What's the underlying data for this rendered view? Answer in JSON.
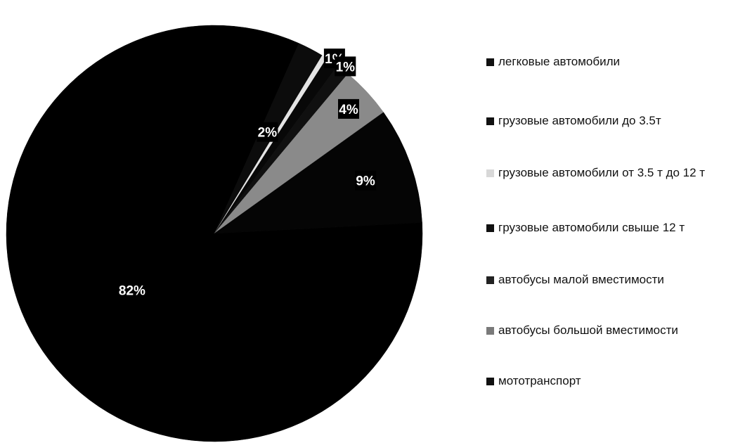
{
  "chart_data": {
    "type": "pie",
    "title": "",
    "legend_position": "right",
    "slices": [
      {
        "label": "легковые автомобили",
        "value": 82,
        "value_label": "82%",
        "color": "#000000",
        "label_color": "#ffffff"
      },
      {
        "label": "грузовые автомобили до 3.5т",
        "value": 2,
        "value_label": "2%",
        "color": "#0c0c0c",
        "label_color": "#ffffff"
      },
      {
        "label": "грузовые автомобили от 3.5 т до 12 т",
        "value": 0.4,
        "value_label": "",
        "color": "#e4e4e4",
        "label_color": "#000000"
      },
      {
        "label": "грузовые автомобили свыше 12 т",
        "value": 1,
        "value_label": "1%",
        "color": "#080808",
        "label_color": "#ffffff"
      },
      {
        "label": "автобусы малой вместимости",
        "value": 1,
        "value_label": "1%",
        "color": "#101010",
        "label_color": "#ffffff"
      },
      {
        "label": "автобусы большой вместимости",
        "value": 4,
        "value_label": "4%",
        "color": "#8a8a8a",
        "label_color": "#000000"
      },
      {
        "label": "мототранспорт",
        "value": 9,
        "value_label": "9%",
        "color": "#050505",
        "label_color": "#ffffff"
      }
    ],
    "legend_entries": [
      {
        "text": "легковые автомобили",
        "color": "#111111"
      },
      {
        "text": "грузовые автомобили до 3.5т",
        "color": "#111111"
      },
      {
        "text": "грузовые автомобили от 3.5 т до 12 т",
        "color": "#d8d8d8"
      },
      {
        "text": "грузовые автомобили свыше 12 т",
        "color": "#111111"
      },
      {
        "text": "автобусы малой вместимости",
        "color": "#222222"
      },
      {
        "text": "автобусы большой вместимости",
        "color": "#7a7a7a"
      },
      {
        "text": "мототранспорт",
        "color": "#111111"
      }
    ]
  }
}
